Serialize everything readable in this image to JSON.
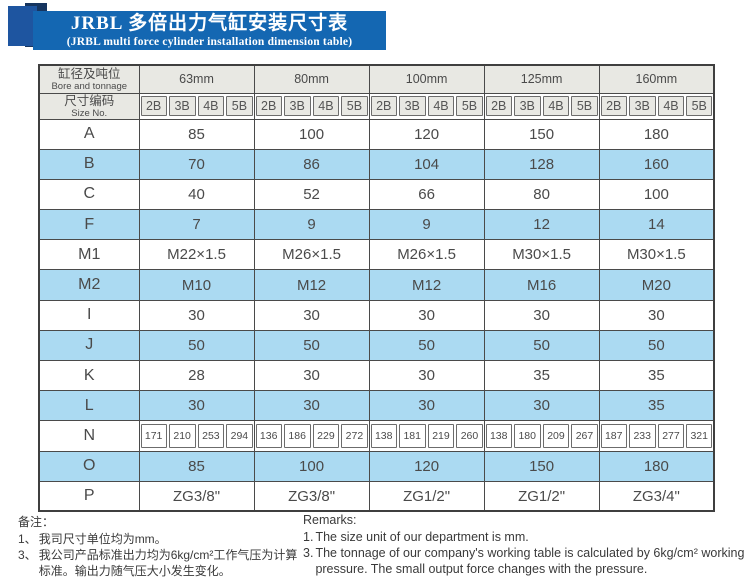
{
  "colors": {
    "banner": "#1467b2",
    "square": "#1e55a0",
    "fold": "#16355f",
    "stripe": "#abdaf2",
    "header_bg": "#e8e8e3",
    "border": "#4a4a4a",
    "text": "#4a4a4a",
    "note_text": "#3a3a3a"
  },
  "banner": {
    "title_zh": "JRBL 多倍出力气缸安装尺寸表",
    "title_en": "(JRBL multi force cylinder installation dimension table)"
  },
  "table": {
    "corner_zh": "缸径及吨位",
    "corner_en": "Bore and tonnage",
    "size_no_zh": "尺寸编码",
    "size_no_en": "Size No.",
    "bore_groups": [
      "63mm",
      "80mm",
      "100mm",
      "125mm",
      "160mm"
    ],
    "size_codes": [
      "2B",
      "3B",
      "4B",
      "5B"
    ],
    "rows": [
      {
        "label": "A",
        "span": "group",
        "values": [
          "85",
          "100",
          "120",
          "150",
          "180"
        ]
      },
      {
        "label": "B",
        "span": "group",
        "values": [
          "70",
          "86",
          "104",
          "128",
          "160"
        ]
      },
      {
        "label": "C",
        "span": "group",
        "values": [
          "40",
          "52",
          "66",
          "80",
          "100"
        ]
      },
      {
        "label": "F",
        "span": "group",
        "values": [
          "7",
          "9",
          "9",
          "12",
          "14"
        ]
      },
      {
        "label": "M1",
        "span": "group",
        "values": [
          "M22×1.5",
          "M26×1.5",
          "M26×1.5",
          "M30×1.5",
          "M30×1.5"
        ]
      },
      {
        "label": "M2",
        "span": "group",
        "values": [
          "M10",
          "M12",
          "M12",
          "M16",
          "M20"
        ]
      },
      {
        "label": "I",
        "span": "group",
        "values": [
          "30",
          "30",
          "30",
          "30",
          "30"
        ]
      },
      {
        "label": "J",
        "span": "group",
        "values": [
          "50",
          "50",
          "50",
          "50",
          "50"
        ]
      },
      {
        "label": "K",
        "span": "group",
        "values": [
          "28",
          "30",
          "30",
          "35",
          "35"
        ]
      },
      {
        "label": "L",
        "span": "group",
        "values": [
          "30",
          "30",
          "30",
          "30",
          "35"
        ]
      },
      {
        "label": "N",
        "span": "sub",
        "values": [
          [
            "171",
            "210",
            "253",
            "294"
          ],
          [
            "136",
            "186",
            "229",
            "272"
          ],
          [
            "138",
            "181",
            "219",
            "260"
          ],
          [
            "138",
            "180",
            "209",
            "267"
          ],
          [
            "187",
            "233",
            "277",
            "321"
          ]
        ]
      },
      {
        "label": "O",
        "span": "group",
        "values": [
          "85",
          "100",
          "120",
          "150",
          "180"
        ]
      },
      {
        "label": "P",
        "span": "group",
        "values": [
          "ZG3/8\"",
          "ZG3/8\"",
          "ZG1/2\"",
          "ZG1/2\"",
          "ZG3/4\""
        ]
      }
    ]
  },
  "notes_zh": {
    "heading": "备注：",
    "items": [
      {
        "no": "1、",
        "text": "我司尺寸单位均为mm。"
      },
      {
        "no": "3、",
        "text": "我公司产品标准出力均为6kg/cm²工作气压为计算标准。输出力随气压大小发生变化。"
      }
    ]
  },
  "notes_en": {
    "heading": "Remarks:",
    "items": [
      {
        "no": "1.",
        "text": "The size unit of our department is mm."
      },
      {
        "no": "3.",
        "text": "The tonnage of our company's working table is calculated by 6kg/cm² working pressure. The small output force changes with the pressure."
      }
    ]
  }
}
